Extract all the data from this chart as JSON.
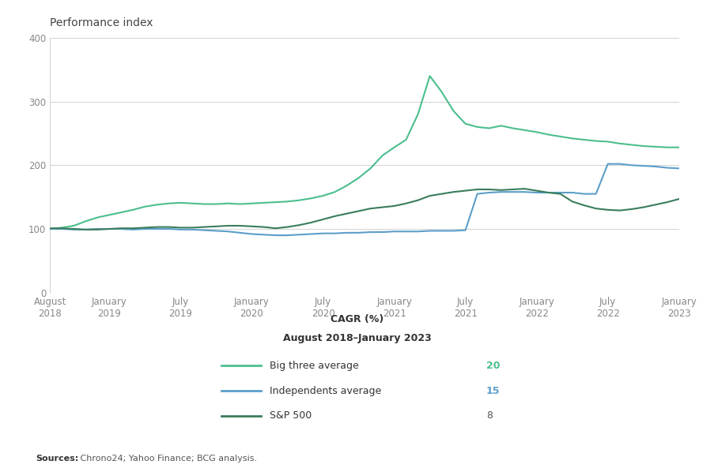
{
  "title": "Performance index",
  "ylim": [
    0,
    400
  ],
  "yticks": [
    0,
    100,
    200,
    300,
    400
  ],
  "source_bold": "Sources:",
  "source_rest": " Chrono24; Yahoo Finance; BCG analysis.",
  "cagr_title_line1": "CAGR (%)",
  "cagr_title_line2": "August 2018–January 2023",
  "legend": [
    {
      "label": "Big three average",
      "color": "#4cbe8d",
      "cagr": "20",
      "cagr_color": "#4cbe8d",
      "bold": true
    },
    {
      "label": "Independents average",
      "color": "#5b9ec9",
      "cagr": "15",
      "cagr_color": "#5b9ec9",
      "bold": true
    },
    {
      "label": "S&P 500",
      "color": "#3a7d5c",
      "cagr": "8",
      "cagr_color": "#555555",
      "bold": false
    }
  ],
  "xtick_labels": [
    "August\n2018",
    "January\n2019",
    "July\n2019",
    "January\n2020",
    "July\n2020",
    "January\n2021",
    "July\n2021",
    "January\n2022",
    "July\n2022",
    "January\n2023"
  ],
  "xtick_positions": [
    0,
    5,
    11,
    17,
    23,
    29,
    35,
    41,
    47,
    53
  ],
  "big_three": [
    100,
    102,
    105,
    112,
    118,
    122,
    126,
    130,
    135,
    138,
    140,
    141,
    140,
    139,
    139,
    140,
    139,
    140,
    141,
    142,
    143,
    145,
    148,
    152,
    158,
    168,
    180,
    195,
    215,
    228,
    240,
    280,
    340,
    315,
    285,
    265,
    260,
    258,
    262,
    258,
    255,
    252,
    248,
    245,
    242,
    240,
    238,
    237,
    234,
    232,
    230,
    229,
    228,
    228
  ],
  "independents": [
    100,
    100,
    99,
    99,
    100,
    100,
    100,
    99,
    100,
    100,
    100,
    99,
    99,
    98,
    97,
    96,
    94,
    92,
    91,
    90,
    90,
    91,
    92,
    93,
    93,
    94,
    94,
    95,
    95,
    96,
    96,
    96,
    97,
    97,
    97,
    98,
    155,
    157,
    158,
    158,
    158,
    157,
    157,
    157,
    157,
    155,
    155,
    202,
    202,
    200,
    199,
    198,
    196,
    195
  ],
  "sp500": [
    101,
    101,
    100,
    99,
    99,
    100,
    101,
    101,
    102,
    103,
    103,
    102,
    102,
    103,
    104,
    105,
    105,
    104,
    103,
    101,
    103,
    106,
    110,
    115,
    120,
    124,
    128,
    132,
    134,
    136,
    140,
    145,
    152,
    155,
    158,
    160,
    162,
    162,
    161,
    162,
    163,
    160,
    157,
    155,
    143,
    137,
    132,
    130,
    129,
    131,
    134,
    138,
    142,
    147
  ],
  "bg_color": "#ffffff",
  "axis_color": "#cccccc",
  "tick_color": "#888888",
  "line_width": 1.5
}
